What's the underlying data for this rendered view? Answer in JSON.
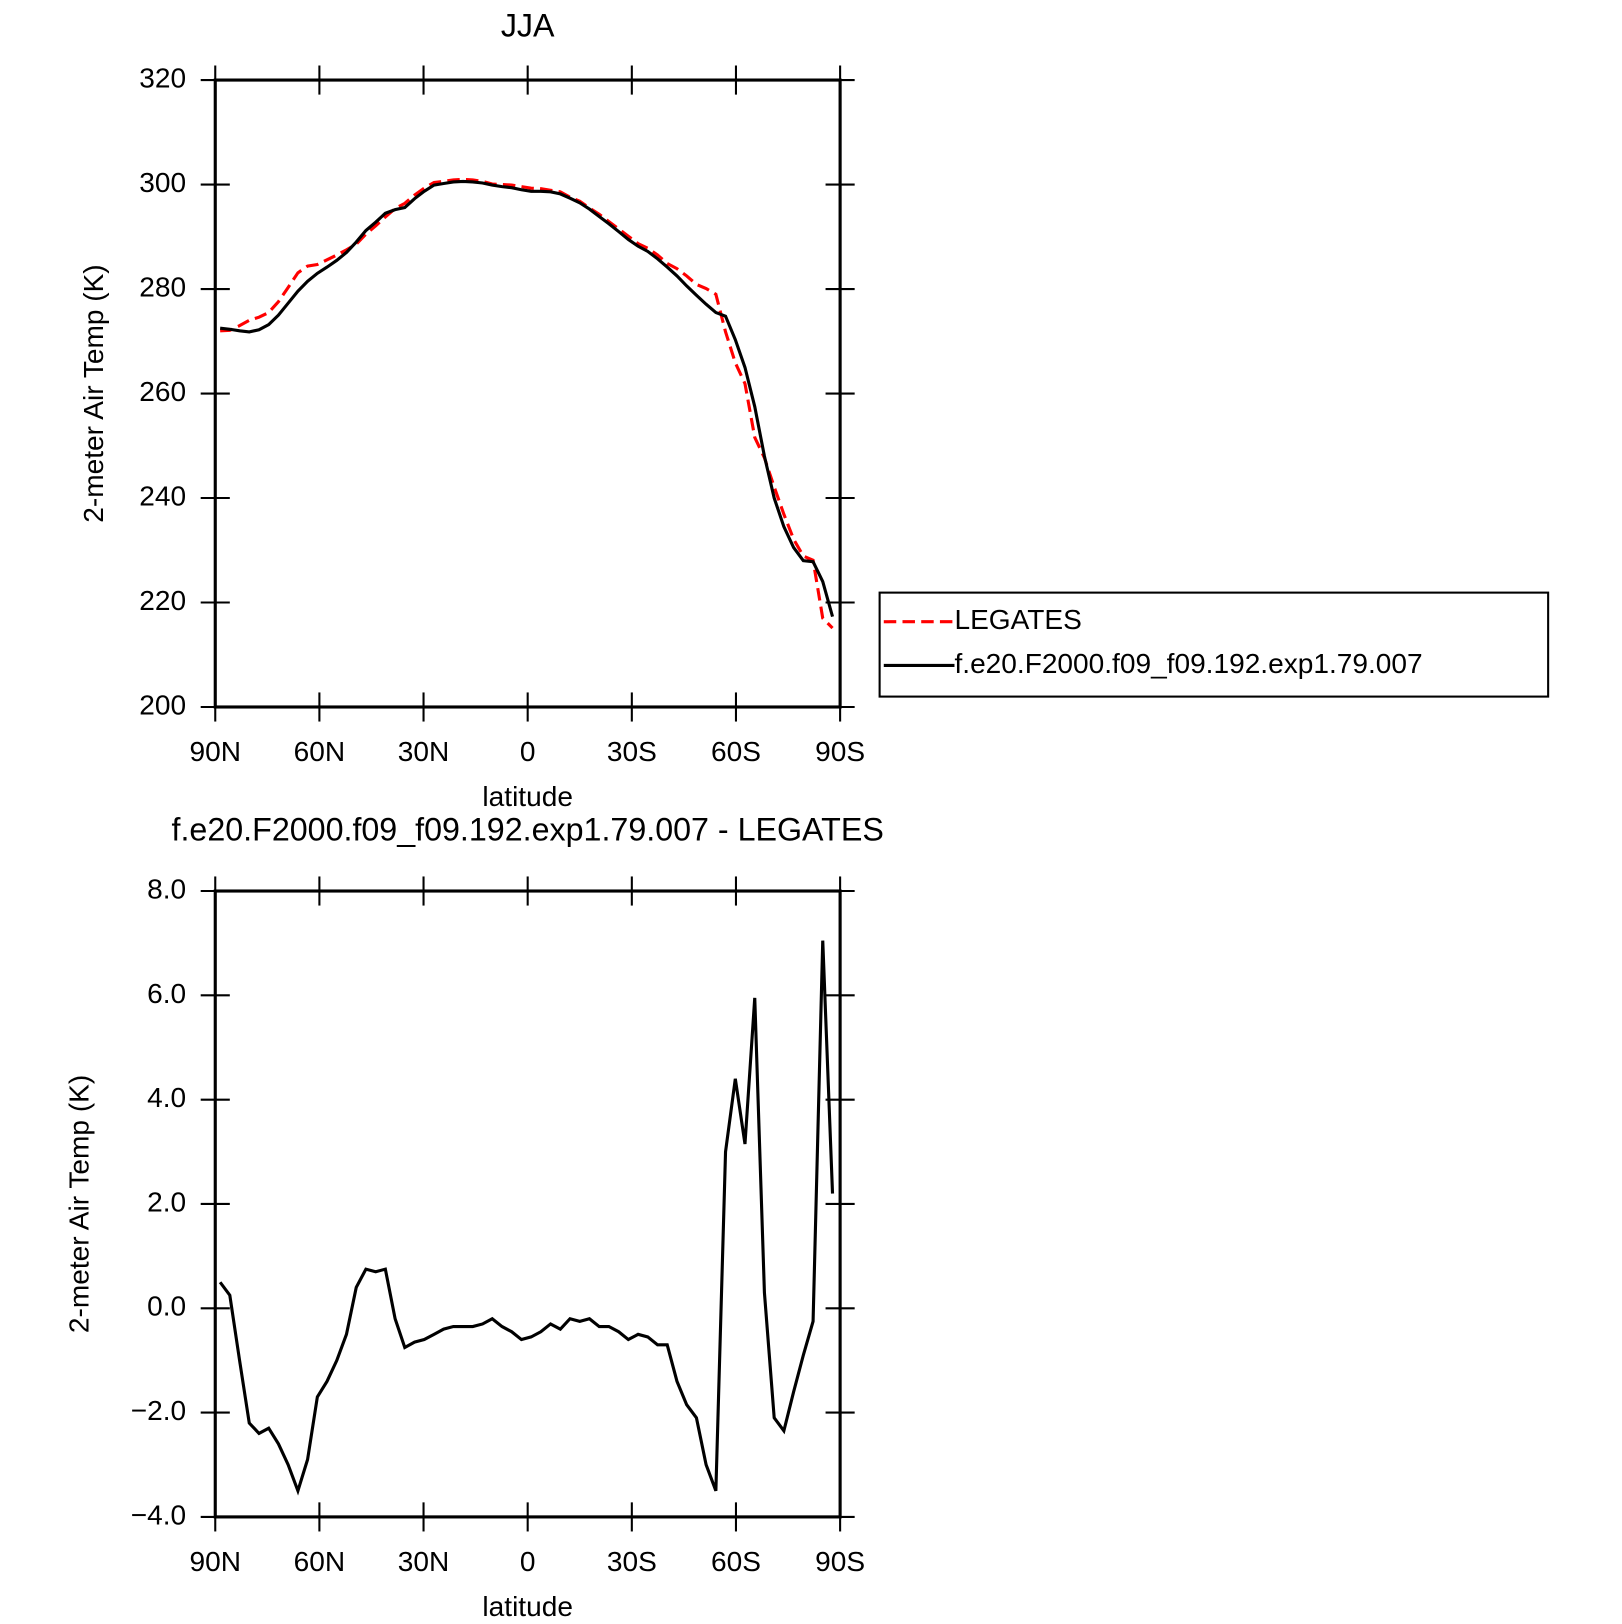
{
  "chart_data": [
    {
      "type": "line",
      "title": "JJA",
      "xlabel": "latitude",
      "ylabel": "2-meter Air Temp (K)",
      "x": [
        88.6,
        85.8,
        83.0,
        80.2,
        77.4,
        74.6,
        71.8,
        69.0,
        66.2,
        63.4,
        60.6,
        57.8,
        55.0,
        52.2,
        49.4,
        46.6,
        43.8,
        41.0,
        38.2,
        35.4,
        32.6,
        29.8,
        27.0,
        24.2,
        21.4,
        18.6,
        15.8,
        13.0,
        10.2,
        7.4,
        4.6,
        1.8,
        -1.0,
        -3.8,
        -6.6,
        -9.4,
        -12.2,
        -15.0,
        -17.8,
        -20.6,
        -23.4,
        -26.2,
        -29.0,
        -31.8,
        -34.6,
        -37.4,
        -40.2,
        -43.0,
        -45.8,
        -48.6,
        -51.4,
        -54.2,
        -57.0,
        -59.8,
        -62.6,
        -65.4,
        -68.2,
        -71.0,
        -73.8,
        -76.6,
        -79.4,
        -82.2,
        -85.0,
        -87.8
      ],
      "series": [
        {
          "name": "LEGATES",
          "color": "#ff0000",
          "line_style": "dashed",
          "values": [
            272.0,
            272.1,
            273.0,
            274.0,
            274.6,
            275.5,
            277.6,
            280.3,
            283.1,
            284.4,
            284.7,
            285.6,
            286.5,
            287.5,
            288.6,
            290.5,
            292.1,
            293.8,
            295.4,
            296.4,
            298.0,
            299.3,
            300.4,
            300.6,
            300.9,
            301.0,
            300.9,
            300.6,
            300.1,
            300.0,
            299.9,
            299.6,
            299.3,
            299.2,
            298.9,
            298.6,
            297.6,
            296.8,
            295.5,
            294.3,
            292.9,
            291.5,
            290.1,
            288.7,
            287.8,
            286.5,
            284.9,
            283.9,
            282.5,
            280.9,
            280.1,
            279.0,
            271.8,
            265.9,
            261.9,
            251.6,
            247.7,
            242.1,
            236.9,
            232.1,
            228.9,
            228.1,
            217.0,
            215.1
          ]
        },
        {
          "name": "f.e20.F2000.f09_f09.192.exp1.79.007",
          "color": "#000000",
          "line_style": "solid",
          "values": [
            272.5,
            272.3,
            272.0,
            271.8,
            272.2,
            273.2,
            275.0,
            277.3,
            279.6,
            281.5,
            283.0,
            284.2,
            285.5,
            287.0,
            289.0,
            291.2,
            292.8,
            294.5,
            295.2,
            295.6,
            297.3,
            298.7,
            299.9,
            300.2,
            300.5,
            300.6,
            300.5,
            300.3,
            299.9,
            299.6,
            299.4,
            299.0,
            298.7,
            298.7,
            298.6,
            298.2,
            297.4,
            296.5,
            295.3,
            293.9,
            292.5,
            291.0,
            289.5,
            288.2,
            287.2,
            285.8,
            284.2,
            282.5,
            280.6,
            278.8,
            277.1,
            275.5,
            274.8,
            270.3,
            265.0,
            257.5,
            248.0,
            240.0,
            234.5,
            230.5,
            228.0,
            227.8,
            224.0,
            217.3
          ]
        }
      ],
      "xlim": [
        90,
        -90
      ],
      "xticks": [
        {
          "value": 90,
          "label": "90N"
        },
        {
          "value": 60,
          "label": "60N"
        },
        {
          "value": 30,
          "label": "30N"
        },
        0,
        {
          "value": -30,
          "label": "30S"
        },
        {
          "value": -60,
          "label": "60S"
        },
        {
          "value": -90,
          "label": "90S"
        }
      ],
      "ylim": [
        200,
        320
      ],
      "yticks": [
        200,
        220,
        240,
        260,
        280,
        300,
        320
      ],
      "legend": true
    },
    {
      "type": "line",
      "title": "f.e20.F2000.f09_f09.192.exp1.79.007 - LEGATES",
      "xlabel": "latitude",
      "ylabel": "2-meter Air Temp (K)",
      "x": [
        88.6,
        85.8,
        83.0,
        80.2,
        77.4,
        74.6,
        71.8,
        69.0,
        66.2,
        63.4,
        60.6,
        57.8,
        55.0,
        52.2,
        49.4,
        46.6,
        43.8,
        41.0,
        38.2,
        35.4,
        32.6,
        29.8,
        27.0,
        24.2,
        21.4,
        18.6,
        15.8,
        13.0,
        10.2,
        7.4,
        4.6,
        1.8,
        -1.0,
        -3.8,
        -6.6,
        -9.4,
        -12.2,
        -15.0,
        -17.8,
        -20.6,
        -23.4,
        -26.2,
        -29.0,
        -31.8,
        -34.6,
        -37.4,
        -40.2,
        -43.0,
        -45.8,
        -48.6,
        -51.4,
        -54.2,
        -57.0,
        -59.8,
        -62.6,
        -65.4,
        -68.2,
        -71.0,
        -73.8,
        -76.6,
        -79.4,
        -82.2,
        -85.0,
        -87.8
      ],
      "series": [
        {
          "color": "#000000",
          "line_style": "solid",
          "values": [
            0.5,
            0.25,
            -1.0,
            -2.2,
            -2.4,
            -2.3,
            -2.6,
            -3.0,
            -3.5,
            -2.9,
            -1.7,
            -1.4,
            -1.0,
            -0.5,
            0.4,
            0.75,
            0.7,
            0.75,
            -0.2,
            -0.75,
            -0.65,
            -0.6,
            -0.5,
            -0.4,
            -0.35,
            -0.35,
            -0.35,
            -0.3,
            -0.2,
            -0.35,
            -0.45,
            -0.6,
            -0.55,
            -0.45,
            -0.3,
            -0.4,
            -0.2,
            -0.25,
            -0.2,
            -0.35,
            -0.35,
            -0.45,
            -0.6,
            -0.5,
            -0.55,
            -0.7,
            -0.7,
            -1.4,
            -1.85,
            -2.1,
            -3.0,
            -3.5,
            3.0,
            4.4,
            3.15,
            5.95,
            0.3,
            -2.1,
            -2.35,
            -1.6,
            -0.9,
            -0.25,
            7.05,
            2.2
          ]
        }
      ],
      "xlim": [
        90,
        -90
      ],
      "xticks": [
        {
          "value": 90,
          "label": "90N"
        },
        {
          "value": 60,
          "label": "60N"
        },
        {
          "value": 30,
          "label": "30N"
        },
        0,
        {
          "value": -30,
          "label": "30S"
        },
        {
          "value": -60,
          "label": "60S"
        },
        {
          "value": -90,
          "label": "90S"
        }
      ],
      "ylim": [
        -4,
        8
      ],
      "yticks": [
        {
          "value": -4,
          "label": "−4.0"
        },
        {
          "value": -2,
          "label": "−2.0"
        },
        {
          "value": 0,
          "label": "0.0"
        },
        {
          "value": 2,
          "label": "2.0"
        },
        {
          "value": 4,
          "label": "4.0"
        },
        {
          "value": 6,
          "label": "6.0"
        },
        {
          "value": 8,
          "label": "8.0"
        }
      ],
      "legend": false
    }
  ]
}
